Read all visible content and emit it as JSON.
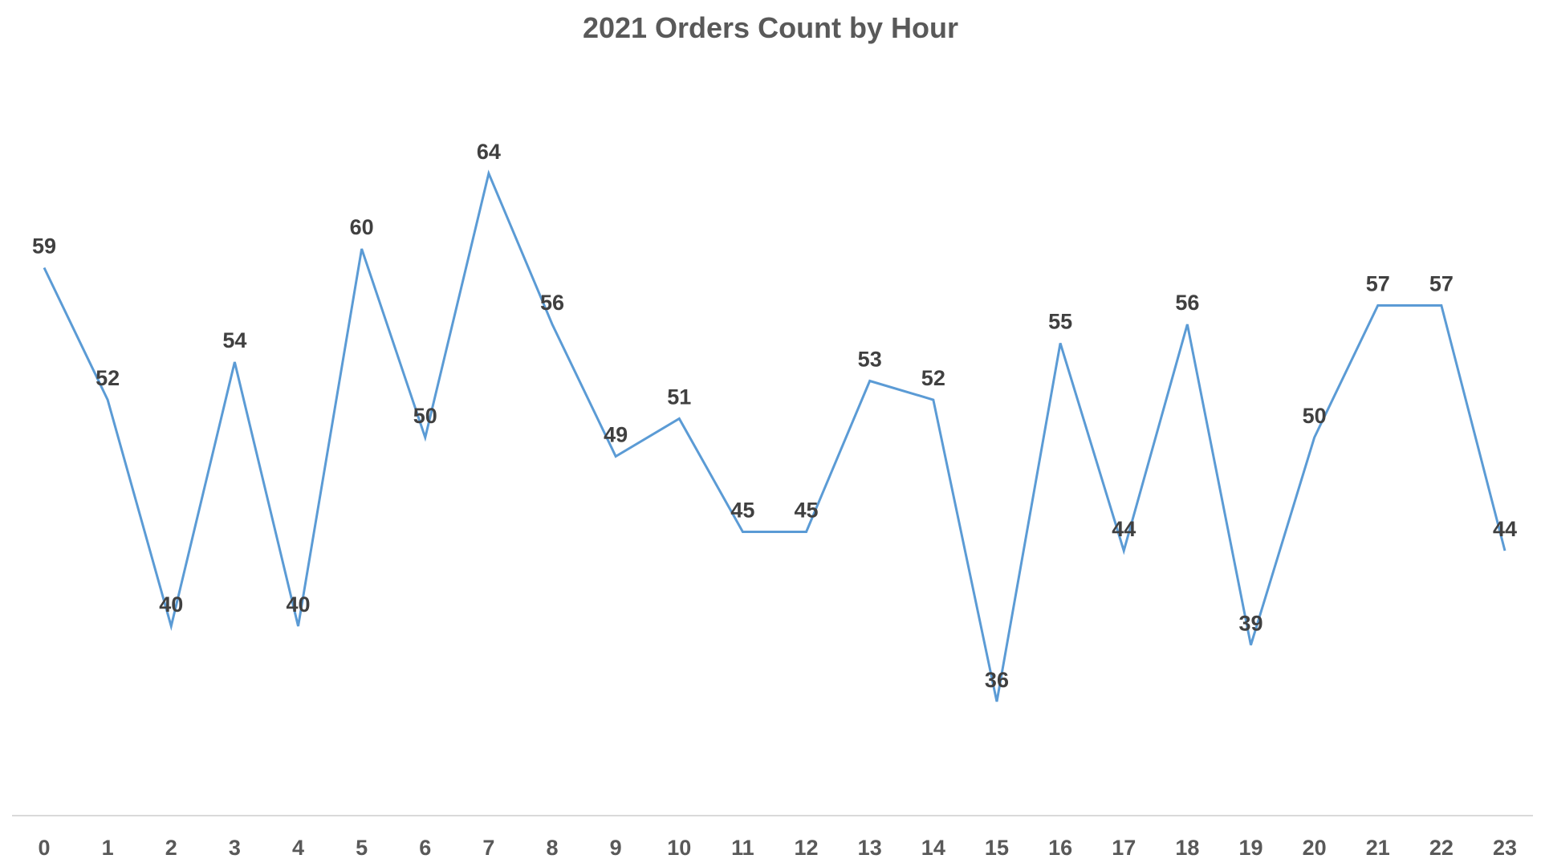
{
  "chart_data": {
    "type": "line",
    "title": "2021 Orders Count by Hour",
    "xlabel": "",
    "ylabel": "",
    "categories": [
      "0",
      "1",
      "2",
      "3",
      "4",
      "5",
      "6",
      "7",
      "8",
      "9",
      "10",
      "11",
      "12",
      "13",
      "14",
      "15",
      "16",
      "17",
      "18",
      "19",
      "20",
      "21",
      "22",
      "23"
    ],
    "series": [
      {
        "values": [
          59,
          52,
          40,
          54,
          40,
          60,
          50,
          64,
          56,
          49,
          51,
          45,
          45,
          53,
          52,
          36,
          55,
          44,
          56,
          39,
          50,
          57,
          57,
          44
        ]
      }
    ],
    "ylim": [
      20,
      70
    ],
    "grid": false,
    "legend": "none",
    "line_color": "#5B9BD5",
    "axis_color": "#D9D9D9"
  }
}
